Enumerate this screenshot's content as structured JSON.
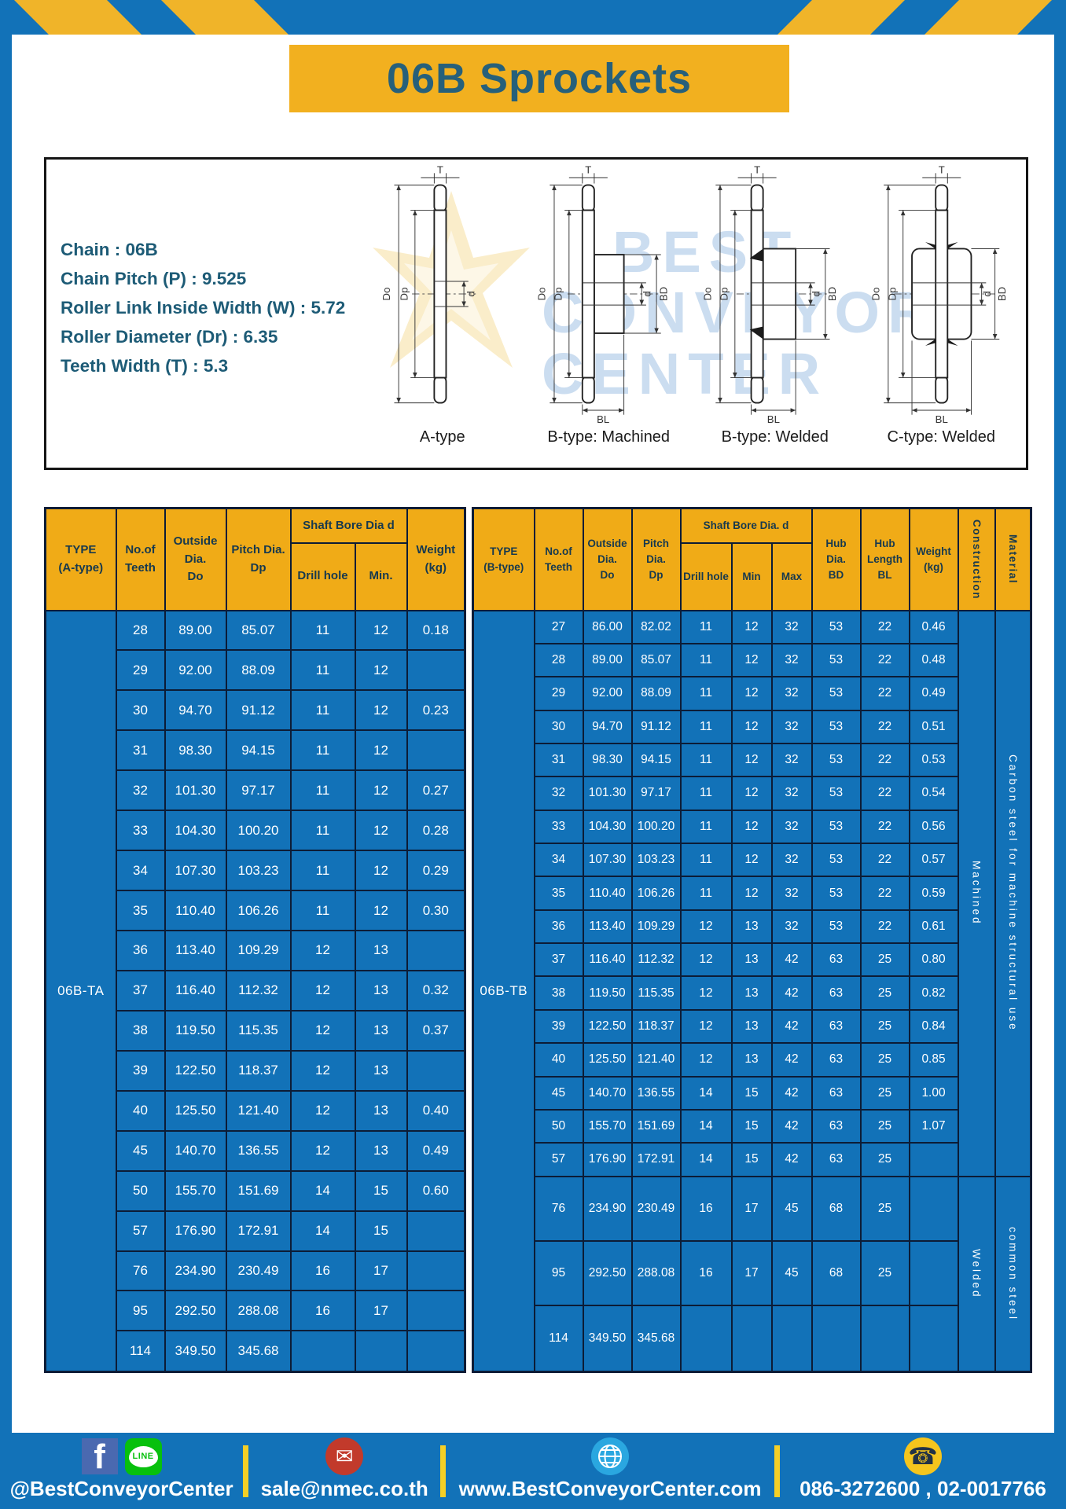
{
  "page": {
    "title": "06B Sprockets"
  },
  "specs": {
    "lines": [
      "Chain : 06B",
      "Chain Pitch (P) : 9.525",
      "Roller Link Inside Width (W) : 5.72",
      "Roller Diameter (Dr) : 6.35",
      "Teeth Width (T) : 5.3"
    ]
  },
  "diagram": {
    "captions": [
      "A-type",
      "B-type: Machined",
      "B-type: Welded",
      "C-type: Welded"
    ],
    "dims": {
      "t": "T",
      "outside": "Do",
      "pitch": "Dp",
      "bore": "d",
      "hub_dia": "BD",
      "hub_len": "BL"
    },
    "watermark": [
      "BEST",
      "CONVEYOR",
      "CENTER"
    ]
  },
  "table_a": {
    "type_label": "06B-TA",
    "headers": {
      "type": "TYPE\n(A-type)",
      "teeth": "No.of\nTeeth",
      "outside": "Outside\nDia.\nDo",
      "pitch": "Pitch Dia.\nDp",
      "shaft_bore": "Shaft Bore Dia d",
      "drill": "Drill hole",
      "min": "Min.",
      "weight": "Weight\n(kg)"
    },
    "rows": [
      [
        "28",
        "89.00",
        "85.07",
        "11",
        "12",
        "0.18"
      ],
      [
        "29",
        "92.00",
        "88.09",
        "11",
        "12",
        ""
      ],
      [
        "30",
        "94.70",
        "91.12",
        "11",
        "12",
        "0.23"
      ],
      [
        "31",
        "98.30",
        "94.15",
        "11",
        "12",
        ""
      ],
      [
        "32",
        "101.30",
        "97.17",
        "11",
        "12",
        "0.27"
      ],
      [
        "33",
        "104.30",
        "100.20",
        "11",
        "12",
        "0.28"
      ],
      [
        "34",
        "107.30",
        "103.23",
        "11",
        "12",
        "0.29"
      ],
      [
        "35",
        "110.40",
        "106.26",
        "11",
        "12",
        "0.30"
      ],
      [
        "36",
        "113.40",
        "109.29",
        "12",
        "13",
        ""
      ],
      [
        "37",
        "116.40",
        "112.32",
        "12",
        "13",
        "0.32"
      ],
      [
        "38",
        "119.50",
        "115.35",
        "12",
        "13",
        "0.37"
      ],
      [
        "39",
        "122.50",
        "118.37",
        "12",
        "13",
        ""
      ],
      [
        "40",
        "125.50",
        "121.40",
        "12",
        "13",
        "0.40"
      ],
      [
        "45",
        "140.70",
        "136.55",
        "12",
        "13",
        "0.49"
      ],
      [
        "50",
        "155.70",
        "151.69",
        "14",
        "15",
        "0.60"
      ],
      [
        "57",
        "176.90",
        "172.91",
        "14",
        "15",
        ""
      ],
      [
        "76",
        "234.90",
        "230.49",
        "16",
        "17",
        ""
      ],
      [
        "95",
        "292.50",
        "288.08",
        "16",
        "17",
        ""
      ],
      [
        "114",
        "349.50",
        "345.68",
        "",
        "",
        ""
      ]
    ]
  },
  "table_b": {
    "type_label": "06B-TB",
    "headers": {
      "type": "TYPE\n(B-type)",
      "teeth": "No.of\nTeeth",
      "outside": "Outside\nDia.\nDo",
      "pitch": "Pitch\nDia.\nDp",
      "shaft_bore": "Shaft Bore Dia. d",
      "drill": "Drill hole",
      "min": "Min",
      "max": "Max",
      "hub_dia": "Hub\nDia.\nBD",
      "hub_len": "Hub\nLength\nBL",
      "weight": "Weight\n(kg)",
      "construction": "Construction",
      "material": "Material"
    },
    "rows": [
      [
        "27",
        "86.00",
        "82.02",
        "11",
        "12",
        "32",
        "53",
        "22",
        "0.46"
      ],
      [
        "28",
        "89.00",
        "85.07",
        "11",
        "12",
        "32",
        "53",
        "22",
        "0.48"
      ],
      [
        "29",
        "92.00",
        "88.09",
        "11",
        "12",
        "32",
        "53",
        "22",
        "0.49"
      ],
      [
        "30",
        "94.70",
        "91.12",
        "11",
        "12",
        "32",
        "53",
        "22",
        "0.51"
      ],
      [
        "31",
        "98.30",
        "94.15",
        "11",
        "12",
        "32",
        "53",
        "22",
        "0.53"
      ],
      [
        "32",
        "101.30",
        "97.17",
        "11",
        "12",
        "32",
        "53",
        "22",
        "0.54"
      ],
      [
        "33",
        "104.30",
        "100.20",
        "11",
        "12",
        "32",
        "53",
        "22",
        "0.56"
      ],
      [
        "34",
        "107.30",
        "103.23",
        "11",
        "12",
        "32",
        "53",
        "22",
        "0.57"
      ],
      [
        "35",
        "110.40",
        "106.26",
        "11",
        "12",
        "32",
        "53",
        "22",
        "0.59"
      ],
      [
        "36",
        "113.40",
        "109.29",
        "12",
        "13",
        "32",
        "53",
        "22",
        "0.61"
      ],
      [
        "37",
        "116.40",
        "112.32",
        "12",
        "13",
        "42",
        "63",
        "25",
        "0.80"
      ],
      [
        "38",
        "119.50",
        "115.35",
        "12",
        "13",
        "42",
        "63",
        "25",
        "0.82"
      ],
      [
        "39",
        "122.50",
        "118.37",
        "12",
        "13",
        "42",
        "63",
        "25",
        "0.84"
      ],
      [
        "40",
        "125.50",
        "121.40",
        "12",
        "13",
        "42",
        "63",
        "25",
        "0.85"
      ],
      [
        "45",
        "140.70",
        "136.55",
        "14",
        "15",
        "42",
        "63",
        "25",
        "1.00"
      ],
      [
        "50",
        "155.70",
        "151.69",
        "14",
        "15",
        "42",
        "63",
        "25",
        "1.07"
      ],
      [
        "57",
        "176.90",
        "172.91",
        "14",
        "15",
        "42",
        "63",
        "25",
        ""
      ],
      [
        "76",
        "234.90",
        "230.49",
        "16",
        "17",
        "45",
        "68",
        "25",
        ""
      ],
      [
        "95",
        "292.50",
        "288.08",
        "16",
        "17",
        "45",
        "68",
        "25",
        ""
      ],
      [
        "114",
        "349.50",
        "345.68",
        "",
        "",
        "",
        "",
        "",
        ""
      ]
    ],
    "construction_groups": [
      {
        "label": "Machined",
        "span": 17
      },
      {
        "label": "Welded",
        "span": 3
      }
    ],
    "material_groups": [
      {
        "label": "Carbon steel for machine structural use",
        "span": 17
      },
      {
        "label": "common steel",
        "span": 3
      }
    ]
  },
  "footer": {
    "social_handle": "@BestConveyorCenter",
    "email": "sale@nmec.co.th",
    "website": "www.BestConveyorCenter.com",
    "phone": "086-3272600 , 02-0017766",
    "line_label": "LINE",
    "facebook_letter": "f",
    "mail_glyph": "✉",
    "phone_glyph": "☎"
  },
  "colors": {
    "brand_blue": "#1272b8",
    "brand_yellow": "#f0ab17",
    "title_teal": "#27607a"
  }
}
